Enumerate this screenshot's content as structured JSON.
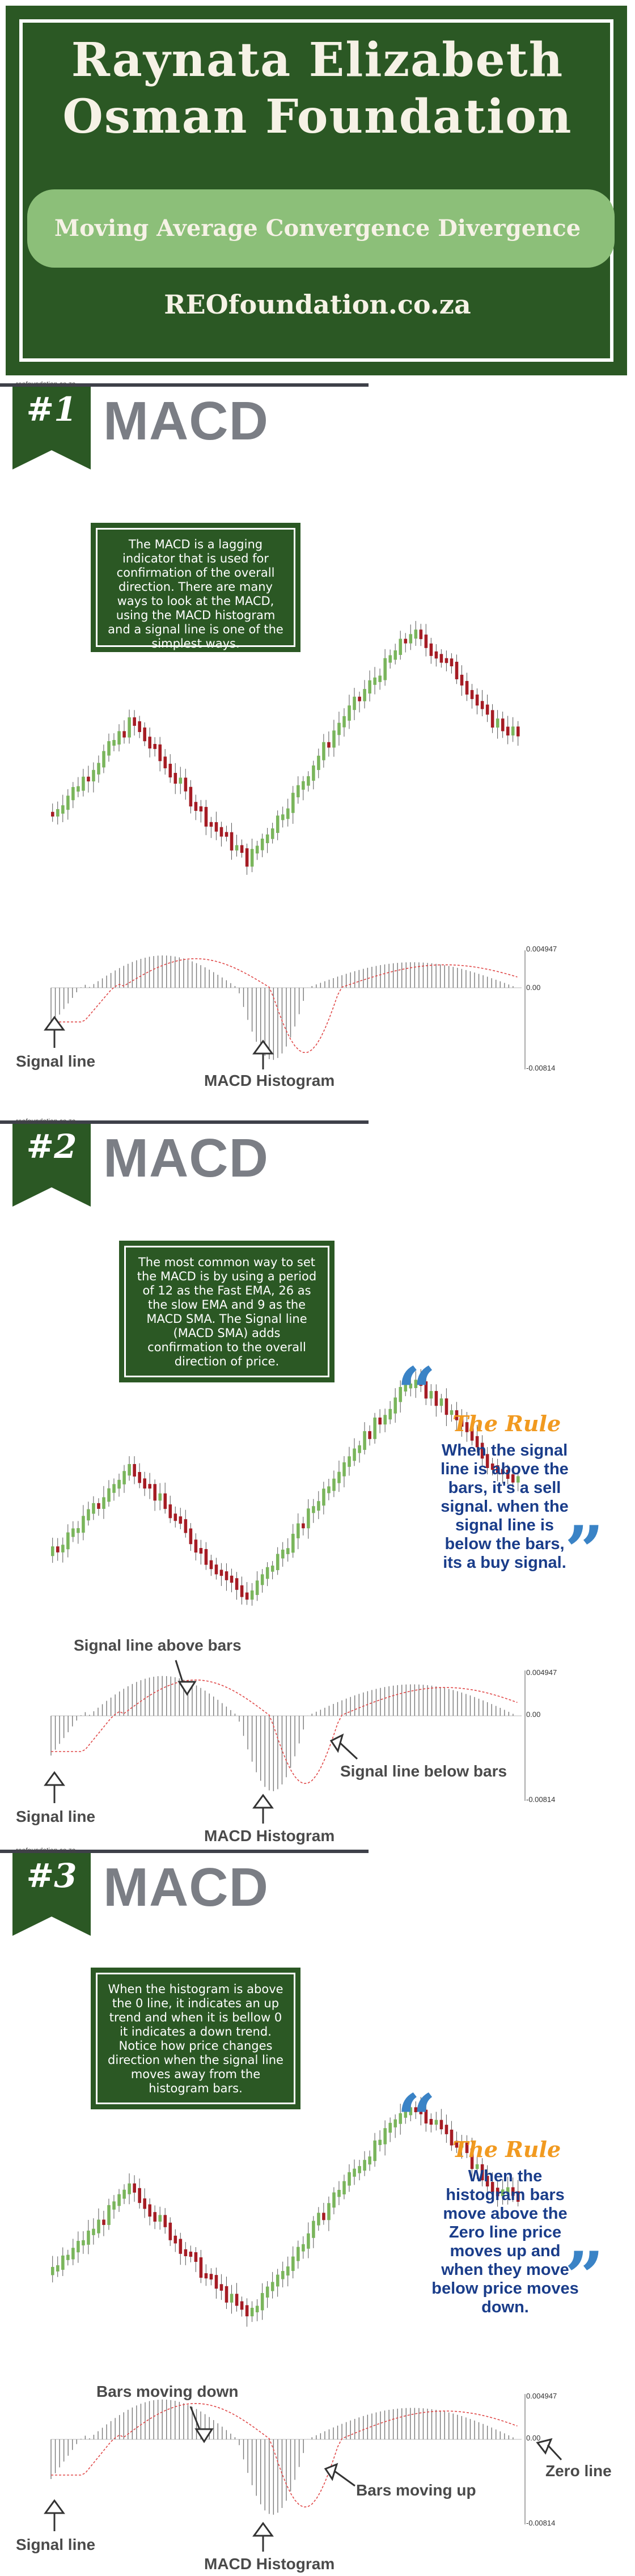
{
  "header": {
    "title_line1": "Raynata Elizabeth",
    "title_line2": "Osman Foundation",
    "subtitle": "Moving Average Convergence Divergence",
    "website": "REOfoundation.co.za"
  },
  "watermark": "reofoundation.co.za",
  "colors": {
    "dark_green": "#2b5824",
    "light_green": "#8cbf79",
    "candle_up": "#7ab55c",
    "candle_down": "#a51c24",
    "signal_line": "#e04848",
    "rule_orange": "#f19a20",
    "rule_blue": "#1a3d8a",
    "quote_blue": "#3a83c6",
    "title_grey": "#7b7e85"
  },
  "axis_labels": {
    "top": "0.004947",
    "zero": "0.00",
    "bottom": "-0.00814"
  },
  "sections": [
    {
      "number": "#1",
      "title": "MACD",
      "callout": "The MACD is a lagging indicator that is used for confirmation of the overall direction. There are many ways to look at the MACD, using the MACD histogram and a signal line is one of the simplest ways.",
      "labels": {
        "signal_line": "Signal line",
        "macd_histogram": "MACD Histogram"
      }
    },
    {
      "number": "#2",
      "title": "MACD",
      "callout": "The most common way to set the MACD is by using a period of 12 as the Fast EMA, 26 as the slow EMA and 9 as the MACD SMA. The Signal line (MACD SMA) adds confirmation to the overall direction of price.",
      "labels": {
        "signal_line": "Signal line",
        "macd_histogram": "MACD Histogram",
        "above_bars": "Signal line above bars",
        "below_bars": "Signal line below bars"
      },
      "rule": {
        "title": "The Rule",
        "text": "When the signal line is above the bars, it's a sell signal. when the signal line is below the bars, its a buy signal.",
        "open_quote": "“",
        "close_quote": "”"
      }
    },
    {
      "number": "#3",
      "title": "MACD",
      "callout": "When the histogram is above the 0 line, it indicates an up trend and when it is bellow 0 it indicates a down trend. Notice how price changes direction when the signal line moves away from the histogram bars.",
      "labels": {
        "signal_line": "Signal line",
        "macd_histogram": "MACD Histogram",
        "bars_down": "Bars moving down",
        "bars_up": "Bars moving up",
        "zero_line": "Zero line"
      },
      "rule": {
        "title": "The Rule",
        "text": "When the histogram bars move above the Zero line price moves up and when they move below price moves down.",
        "open_quote": "“",
        "close_quote": "”"
      }
    }
  ]
}
